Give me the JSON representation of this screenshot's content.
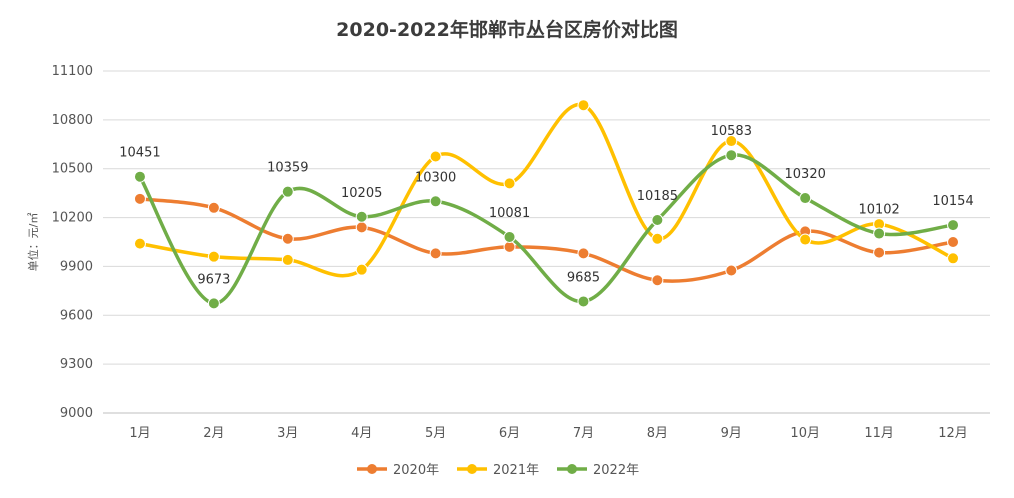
{
  "chart_data": {
    "type": "line",
    "title": "2020-2022年邯郸市丛台区房价对比图",
    "ylabel": "单位：元/㎡",
    "xlabel": "",
    "ylim": [
      9000,
      11100
    ],
    "yticks": [
      9000,
      9300,
      9600,
      9900,
      10200,
      10500,
      10800,
      11100
    ],
    "categories": [
      "1月",
      "2月",
      "3月",
      "4月",
      "5月",
      "6月",
      "7月",
      "8月",
      "9月",
      "10月",
      "11月",
      "12月"
    ],
    "smooth": true,
    "grid": "horizontal",
    "legend_position": "bottom",
    "series": [
      {
        "name": "2020年",
        "color": "#ed7d31",
        "values": [
          10315,
          10260,
          10070,
          10140,
          9980,
          10020,
          9980,
          9815,
          9875,
          10115,
          9985,
          10050
        ],
        "labels": false
      },
      {
        "name": "2021年",
        "color": "#ffc000",
        "values": [
          10040,
          9960,
          9940,
          9880,
          10575,
          10410,
          10890,
          10070,
          10670,
          10065,
          10160,
          9950
        ],
        "labels": false
      },
      {
        "name": "2022年",
        "color": "#70ad47",
        "values": [
          10451,
          9673,
          10359,
          10205,
          10300,
          10081,
          9685,
          10185,
          10583,
          10320,
          10102,
          10154
        ],
        "labels": true
      }
    ]
  }
}
